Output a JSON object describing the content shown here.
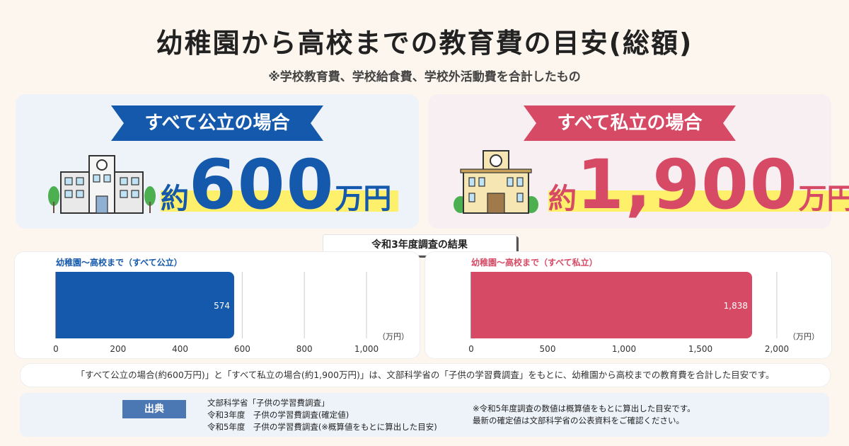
{
  "title": "幼稚園から高校までの教育費の目安(総額)",
  "subtitle": "※学校教育費、学校給食費、学校外活動費を合計したもの",
  "public_card": {
    "label": "すべて公立の場合",
    "prefix": "約",
    "amount": "600",
    "unit": "万円",
    "color": "#1459ab"
  },
  "private_card": {
    "label": "すべて私立の場合",
    "prefix": "約",
    "amount": "1,900",
    "unit": "万円",
    "color": "#d74a65"
  },
  "survey_label": "令和3年度調査の結果",
  "chart_data": [
    {
      "type": "bar",
      "orientation": "horizontal",
      "title": "幼稚園〜高校まで（すべて公立）",
      "categories": [
        ""
      ],
      "values": [
        574
      ],
      "value_labels": [
        "574"
      ],
      "xlim": [
        0,
        1000
      ],
      "ticks": [
        0,
        200,
        400,
        600,
        800,
        1000
      ],
      "tick_labels": [
        "0",
        "200",
        "400",
        "600",
        "800",
        "1,000"
      ],
      "unit_label": "（万円）",
      "grid": true,
      "color": "#1459ab"
    },
    {
      "type": "bar",
      "orientation": "horizontal",
      "title": "幼稚園〜高校まで（すべて私立）",
      "categories": [
        ""
      ],
      "values": [
        1838
      ],
      "value_labels": [
        "1,838"
      ],
      "xlim": [
        0,
        2000
      ],
      "ticks": [
        0,
        500,
        1000,
        1500,
        2000
      ],
      "tick_labels": [
        "0",
        "500",
        "1,000",
        "1,500",
        "2,000"
      ],
      "unit_label": "（万円）",
      "grid": true,
      "color": "#d74a65"
    }
  ],
  "note": "「すべて公立の場合(約600万円)」と「すべて私立の場合(約1,900万円)」は、文部科学省の「子供の学習費調査」をもとに、幼稚園から高校までの教育費を合計した目安です。",
  "source": {
    "tag": "出典",
    "lines": [
      "文部科学省「子供の学習費調査」",
      "令和3年度　子供の学習費調査(確定値)",
      "令和5年度　子供の学習費調査(※概算値をもとに算出した目安)"
    ],
    "notes": [
      "※令和5年度調査の数値は概算値をもとに算出した目安です。",
      "最新の確定値は文部科学省の公表資料をご確認ください。"
    ]
  }
}
